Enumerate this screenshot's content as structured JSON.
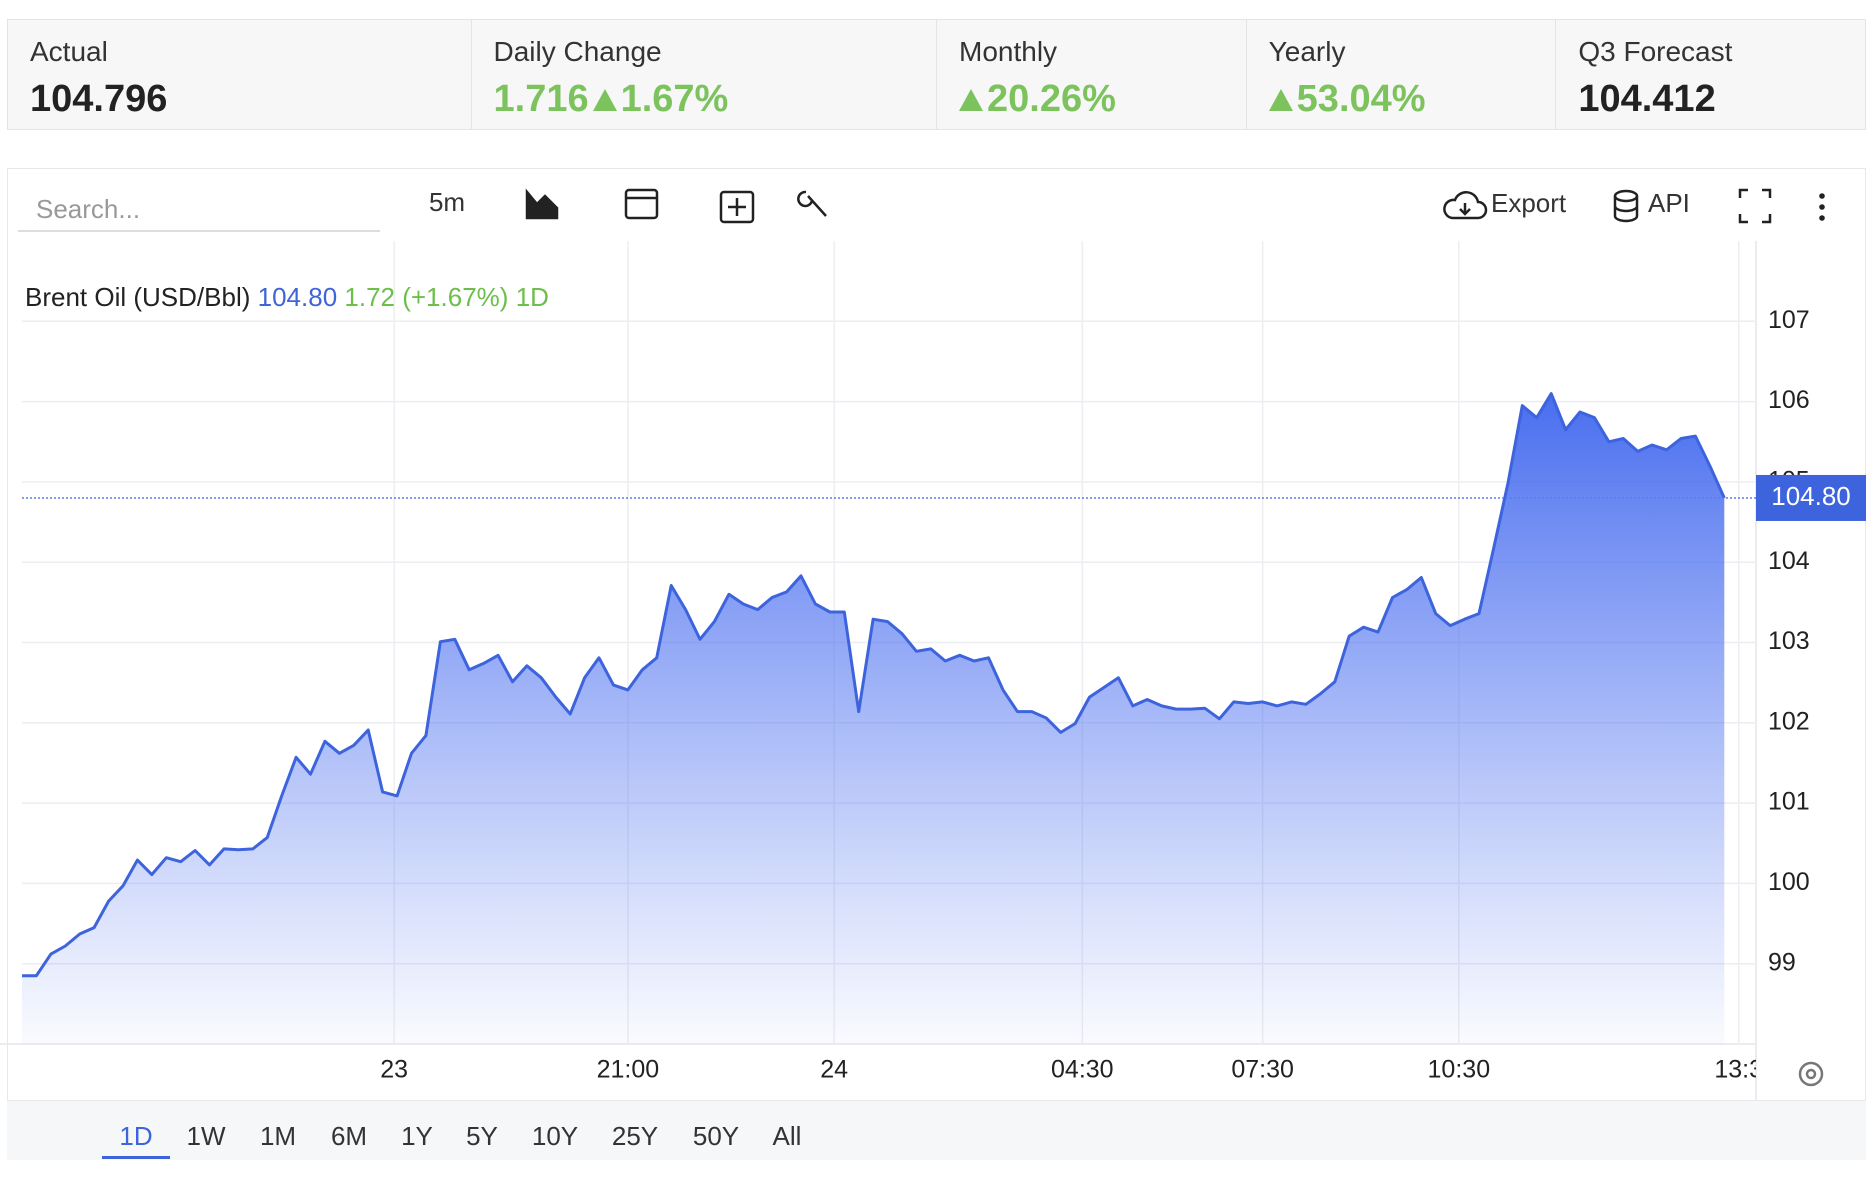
{
  "header": {
    "stats": [
      {
        "label": "Actual",
        "value": "104.796"
      },
      {
        "label": "Daily Change",
        "value": "1.716",
        "change": "1.67%"
      },
      {
        "label": "Monthly",
        "change": "20.26%"
      },
      {
        "label": "Yearly",
        "change": "53.04%"
      },
      {
        "label": "Q3 Forecast",
        "value": "104.412"
      }
    ]
  },
  "toolbar": {
    "search_placeholder": "Search...",
    "interval": "5m",
    "export": "Export",
    "api": "API"
  },
  "ranges": [
    "1D",
    "1W",
    "1M",
    "6M",
    "1Y",
    "5Y",
    "10Y",
    "25Y",
    "50Y",
    "All"
  ],
  "active_range": 0,
  "chart_data": {
    "type": "area",
    "legend": {
      "name": "Brent Oil (USD/Bbl)",
      "price": "104.80",
      "change": "1.72 (+1.67%)",
      "period": "1D"
    },
    "price_label": "104.80",
    "color": "#3d63dd",
    "values": [
      98.85,
      98.85,
      99.12,
      99.22,
      99.37,
      99.45,
      99.78,
      99.97,
      100.29,
      100.11,
      100.32,
      100.27,
      100.41,
      100.23,
      100.43,
      100.42,
      100.43,
      100.57,
      101.09,
      101.57,
      101.36,
      101.77,
      101.62,
      101.72,
      101.91,
      101.14,
      101.09,
      101.62,
      101.84,
      103.01,
      103.04,
      102.66,
      102.74,
      102.84,
      102.51,
      102.71,
      102.56,
      102.32,
      102.11,
      102.56,
      102.81,
      102.47,
      102.41,
      102.66,
      102.81,
      103.71,
      103.41,
      103.04,
      103.26,
      103.6,
      103.48,
      103.41,
      103.56,
      103.63,
      103.83,
      103.48,
      103.38,
      103.38,
      102.14,
      103.29,
      103.26,
      103.11,
      102.89,
      102.92,
      102.77,
      102.84,
      102.77,
      102.81,
      102.41,
      102.14,
      102.14,
      102.06,
      101.88,
      101.99,
      102.32,
      102.44,
      102.56,
      102.21,
      102.29,
      102.21,
      102.17,
      102.17,
      102.18,
      102.05,
      102.26,
      102.24,
      102.26,
      102.21,
      102.26,
      102.23,
      102.36,
      102.51,
      103.08,
      103.19,
      103.13,
      103.56,
      103.66,
      103.81,
      103.36,
      103.21,
      103.29,
      103.36,
      104.16,
      104.98,
      105.95,
      105.8,
      106.1,
      105.65,
      105.87,
      105.8,
      105.5,
      105.54,
      105.38,
      105.46,
      105.4,
      105.54,
      105.57,
      105.2,
      104.8
    ],
    "xlim": [
      0,
      120.2
    ],
    "xticks": [
      {
        "value": 25.8,
        "label": "23"
      },
      {
        "value": 42,
        "label": "21:00"
      },
      {
        "value": 56.3,
        "label": "24"
      },
      {
        "value": 73.5,
        "label": "04:30"
      },
      {
        "value": 86,
        "label": "07:30"
      },
      {
        "value": 99.6,
        "label": "10:30"
      },
      {
        "value": 119,
        "label": "13:3"
      }
    ],
    "ylim": [
      98,
      108
    ],
    "yticks": [
      99,
      100,
      101,
      102,
      103,
      104,
      105,
      106,
      107
    ],
    "grid": true
  }
}
